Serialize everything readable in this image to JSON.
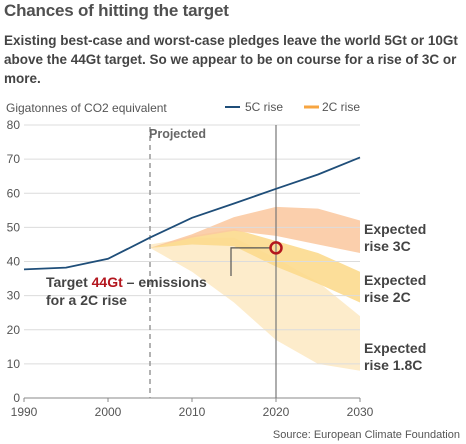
{
  "header": {
    "title": "Chances of hitting the target",
    "subtitle": "Existing best-case and worst-case pledges leave the world 5Gt or 10Gt above the 44Gt target. So we appear to be on course for a rise of 3C or more."
  },
  "chart_data": {
    "type": "line",
    "title": "Chances of hitting the target",
    "ylabel": "Gigatonnes of CO2 equivalent",
    "xlim": [
      1990,
      2030
    ],
    "ylim": [
      0,
      80
    ],
    "xticks": [
      "1990",
      "2000",
      "2010",
      "2020",
      "2030"
    ],
    "yticks": [
      "0",
      "10",
      "20",
      "30",
      "40",
      "50",
      "60",
      "70",
      "80"
    ],
    "grid": "horizontal",
    "legend_placement": "top-right",
    "legend": [
      "5C rise",
      "2C rise"
    ],
    "series": [
      {
        "name": "5C rise",
        "color": "#1f4e79",
        "x": [
          1990,
          1995,
          2000,
          2005,
          2010,
          2015,
          2020,
          2025,
          2030
        ],
        "y": [
          37.7,
          38.2,
          40.8,
          47.0,
          52.8,
          57.0,
          61.3,
          65.5,
          70.5
        ]
      }
    ],
    "bands": [
      {
        "label": "Expected rise 1.8C",
        "color": "#fde9c4",
        "x": [
          2005,
          2010,
          2015,
          2020,
          2025,
          2030
        ],
        "upper": [
          45.0,
          47.0,
          47.0,
          41.0,
          34.0,
          24.0
        ],
        "lower": [
          44.0,
          37.0,
          28.0,
          17.0,
          10.0,
          8.0
        ]
      },
      {
        "label": "Expected rise 2C",
        "color": "#fcd98b",
        "x": [
          2005,
          2010,
          2015,
          2020,
          2025,
          2030
        ],
        "upper": [
          44.0,
          47.5,
          49.5,
          46.0,
          42.5,
          37.0
        ],
        "lower": [
          44.0,
          45.0,
          44.5,
          38.5,
          33.5,
          28.0
        ]
      },
      {
        "label": "Expected rise 3C",
        "color": "#fbc8a0",
        "x": [
          2005,
          2010,
          2015,
          2020,
          2025,
          2030
        ],
        "upper": [
          44.0,
          48.0,
          53.0,
          56.0,
          55.5,
          52.0
        ],
        "lower": [
          44.0,
          47.0,
          49.0,
          47.5,
          45.0,
          42.5
        ]
      }
    ],
    "projected_from": 2005,
    "projected_label": "Projected",
    "target_marker": {
      "x": 2020,
      "y": 44
    },
    "current_year_line": 2020,
    "annotations": {
      "target_prefix": "Target ",
      "target_value": "44Gt",
      "target_suffix": " – emissions",
      "target_line2": "for a 2C rise",
      "rise_3c": [
        "Expected",
        "rise 3C"
      ],
      "rise_2c": [
        "Expected",
        "rise 2C"
      ],
      "rise_18c": [
        "Expected",
        "rise 1.8C"
      ]
    },
    "source": "Source: European Climate Foundation"
  },
  "colors": {
    "line_5c": "#1f4e79",
    "legend_2c": "#f7a541",
    "target_red": "#b3161e",
    "grid": "#dcdcdc",
    "projected_line": "#999999"
  }
}
